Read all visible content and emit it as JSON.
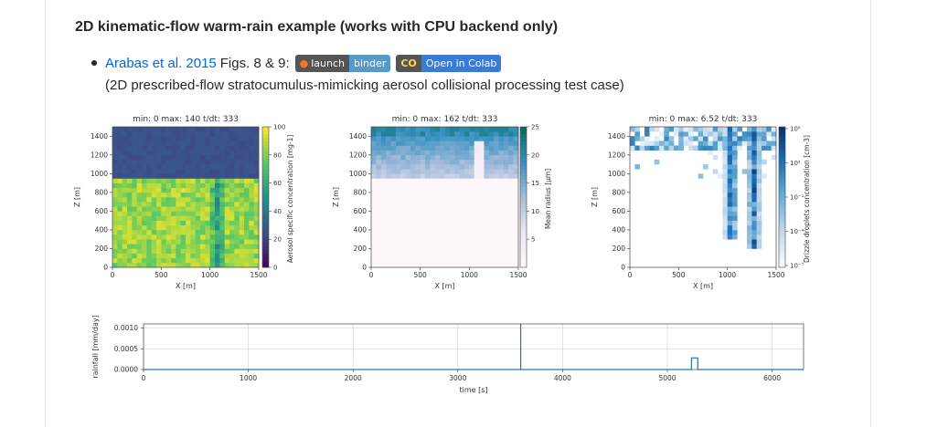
{
  "heading": "2D kinematic-flow warm-rain example (works with CPU backend only)",
  "reference": {
    "link_text": "Arabas et al. 2015",
    "figs_text": "Figs. 8 & 9:",
    "binder_left": "launch",
    "binder_right": "binder",
    "colab_icon": "CO",
    "colab_text": "Open in Colab",
    "description": "(2D prescribed-flow stratocumulus-mimicking aerosol collisional processing test case)"
  },
  "colors": {
    "link": "#0366d6",
    "binder_blue": "#579aca",
    "colab_orange": "#e37400",
    "rain_line": "#1f77b4"
  },
  "chart_data": [
    {
      "type": "heatmap",
      "title": "min: 0    max: 140    t/dt:   333",
      "xlabel": "X [m]",
      "ylabel": "Z [m]",
      "xticks": [
        "0",
        "500",
        "1000",
        "1500"
      ],
      "yticks": [
        "0",
        "200",
        "400",
        "600",
        "800",
        "1000",
        "1200",
        "1400"
      ],
      "xlim": [
        0,
        1500
      ],
      "ylim": [
        0,
        1500
      ],
      "colorbar_label": "Aerosol specific concentration [mg-1]",
      "colorbar_ticks": [
        "0",
        "20",
        "40",
        "60",
        "80",
        "100"
      ],
      "colorbar_range": [
        0,
        100
      ],
      "colormap": "viridis",
      "cloud_base_z": 950,
      "cloud_top_value": 15,
      "below_cloud_value": 85
    },
    {
      "type": "heatmap",
      "title": "min: 0    max: 162    t/dt:   333",
      "xlabel": "X [m]",
      "ylabel": "Z [m]",
      "xticks": [
        "0",
        "500",
        "1000",
        "1500"
      ],
      "yticks": [
        "0",
        "200",
        "400",
        "600",
        "800",
        "1000",
        "1200",
        "1400"
      ],
      "xlim": [
        0,
        1500
      ],
      "ylim": [
        0,
        1500
      ],
      "colorbar_label": "Mean radius [μm]",
      "colorbar_ticks": [
        "5",
        "10",
        "15",
        "20",
        "25"
      ],
      "colorbar_range": [
        0,
        25
      ],
      "colormap": "PuBuGn",
      "cloud_base_z": 950
    },
    {
      "type": "heatmap",
      "title": "min: 0    max: 6.52    t/dt:   333",
      "xlabel": "X [m]",
      "ylabel": "Z [m]",
      "xticks": [
        "0",
        "500",
        "1000",
        "1500"
      ],
      "yticks": [
        "0",
        "200",
        "400",
        "600",
        "800",
        "1000",
        "1200",
        "1400"
      ],
      "xlim": [
        0,
        1500
      ],
      "ylim": [
        0,
        1500
      ],
      "colorbar_label": "Drizzle droplets concentration [cm-3]",
      "colorbar_ticks": [
        "10⁵",
        "10²",
        "10⁻¹",
        "10⁻⁴",
        "10⁻⁷"
      ],
      "colormap": "Blues (log)"
    },
    {
      "type": "line",
      "xlabel": "time [s]",
      "ylabel": "rainfall [mm/day]",
      "xticks": [
        "0",
        "1000",
        "2000",
        "3000",
        "4000",
        "5000",
        "6000"
      ],
      "yticks": [
        "0.0000",
        "0.0005",
        "0.0010"
      ],
      "xlim": [
        0,
        6300
      ],
      "ylim": [
        0,
        0.0011
      ],
      "vline_x": 3600,
      "series": [
        {
          "x": [
            0,
            5230,
            5230,
            5290,
            5290,
            6300
          ],
          "values": [
            0,
            0,
            0.00028,
            0.00028,
            0,
            0
          ]
        }
      ]
    }
  ]
}
